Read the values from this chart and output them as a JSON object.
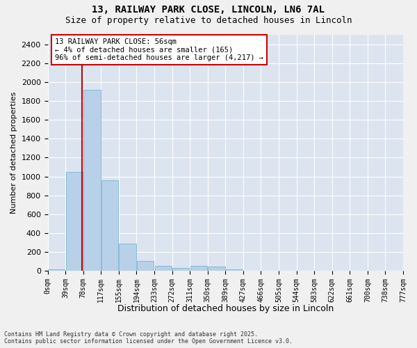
{
  "title1": "13, RAILWAY PARK CLOSE, LINCOLN, LN6 7AL",
  "title2": "Size of property relative to detached houses in Lincoln",
  "xlabel": "Distribution of detached houses by size in Lincoln",
  "ylabel": "Number of detached properties",
  "bar_color": "#b8d0e8",
  "bar_edge_color": "#6aaed6",
  "background_color": "#dce4f0",
  "grid_color": "#ffffff",
  "annotation_box_color": "#cc0000",
  "vline_color": "#cc0000",
  "bin_labels": [
    "0sqm",
    "39sqm",
    "78sqm",
    "117sqm",
    "155sqm",
    "194sqm",
    "233sqm",
    "272sqm",
    "311sqm",
    "350sqm",
    "389sqm",
    "427sqm",
    "466sqm",
    "505sqm",
    "544sqm",
    "583sqm",
    "622sqm",
    "661sqm",
    "700sqm",
    "738sqm",
    "777sqm"
  ],
  "values": [
    20,
    1050,
    1920,
    960,
    290,
    105,
    55,
    30,
    50,
    45,
    18,
    0,
    0,
    0,
    0,
    0,
    0,
    0,
    0,
    0
  ],
  "ylim": [
    0,
    2500
  ],
  "yticks": [
    0,
    200,
    400,
    600,
    800,
    1000,
    1200,
    1400,
    1600,
    1800,
    2000,
    2200,
    2400
  ],
  "annotation_text": "13 RAILWAY PARK CLOSE: 56sqm\n← 4% of detached houses are smaller (165)\n96% of semi-detached houses are larger (4,217) →",
  "footer": "Contains HM Land Registry data © Crown copyright and database right 2025.\nContains public sector information licensed under the Open Government Licence v3.0.",
  "property_size_sqm": 56,
  "bin_width": 39,
  "fig_bg_color": "#f0f0f0"
}
